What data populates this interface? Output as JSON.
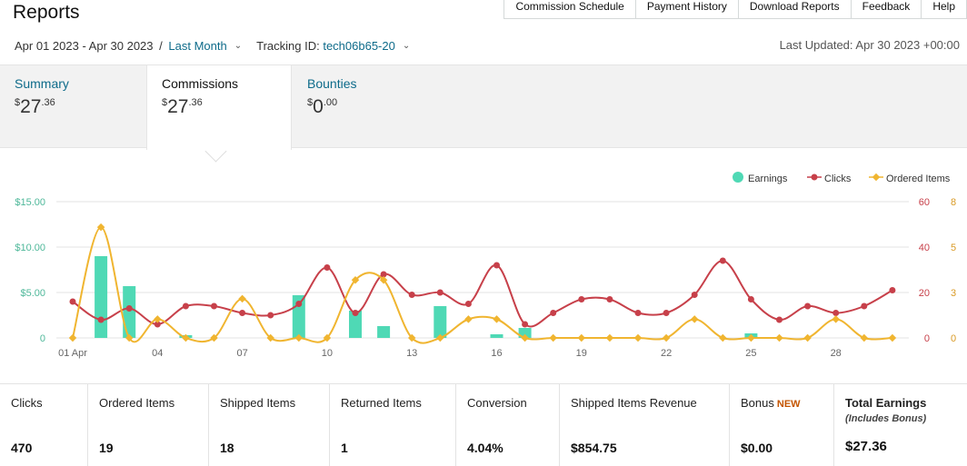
{
  "header": {
    "title": "Reports",
    "nav": [
      "Commission Schedule",
      "Payment History",
      "Download Reports",
      "Feedback",
      "Help"
    ],
    "date_range": "Apr 01 2023 - Apr 30 2023",
    "range_slash": "/",
    "range_preset": "Last Month",
    "tracking_label": "Tracking ID:",
    "tracking_id": "tech06b65-20",
    "last_updated": "Last Updated: Apr 30 2023 +00:00"
  },
  "tabs": [
    {
      "label": "Summary",
      "currency": "$",
      "whole": "27",
      "cents": ".36"
    },
    {
      "label": "Commissions",
      "currency": "$",
      "whole": "27",
      "cents": ".36"
    },
    {
      "label": "Bounties",
      "currency": "$",
      "whole": "0",
      "cents": ".00"
    }
  ],
  "colors": {
    "earnings": "#4fd9b5",
    "clicks": "#c7404a",
    "ordered": "#f0b530",
    "link": "#0e6b8a",
    "new_badge": "#c45500"
  },
  "chart_data": {
    "type": "bar",
    "x_tick_labels": [
      "01 Apr",
      "04",
      "07",
      "10",
      "13",
      "16",
      "19",
      "22",
      "25",
      "28"
    ],
    "x_tick_days": [
      1,
      4,
      7,
      10,
      13,
      16,
      19,
      22,
      25,
      28
    ],
    "days": [
      1,
      2,
      3,
      4,
      5,
      6,
      7,
      8,
      9,
      10,
      11,
      12,
      13,
      14,
      15,
      16,
      17,
      18,
      19,
      20,
      21,
      22,
      23,
      24,
      25,
      26,
      27,
      28,
      29,
      30
    ],
    "y_left_labels": [
      "$15.00",
      "$10.00",
      "$5.00",
      "0"
    ],
    "y_left_range": [
      0,
      15
    ],
    "y_right1_labels": [
      "60",
      "40",
      "20",
      "0"
    ],
    "y_right1_range": [
      0,
      60
    ],
    "y_right2_labels": [
      "8",
      "5",
      "3",
      "0"
    ],
    "y_right2_range": [
      0,
      8
    ],
    "grid": true,
    "legend_position": "top-right",
    "series": [
      {
        "name": "Earnings",
        "type": "bar",
        "axis": "left",
        "values": [
          0,
          9.0,
          5.7,
          0,
          0.3,
          0,
          0,
          0,
          4.7,
          0,
          3.0,
          1.3,
          0,
          3.5,
          0,
          0.4,
          1.1,
          0,
          0,
          0,
          0,
          0,
          0,
          0,
          0.5,
          0,
          0,
          0,
          0,
          0
        ]
      },
      {
        "name": "Clicks",
        "type": "line",
        "axis": "right1",
        "values": [
          16,
          8,
          13,
          6,
          14,
          14,
          11,
          10,
          15,
          31,
          11,
          28,
          19,
          20,
          15,
          32,
          6,
          11,
          17,
          17,
          11,
          11,
          19,
          34,
          17,
          8,
          14,
          11,
          14,
          21
        ]
      },
      {
        "name": "Ordered Items",
        "type": "line",
        "axis": "right2",
        "values": [
          0,
          6.5,
          0,
          1.1,
          0,
          0,
          2.3,
          0,
          0,
          0,
          3.4,
          3.4,
          0,
          0,
          1.1,
          1.1,
          0,
          0,
          0,
          0,
          0,
          0,
          1.1,
          0,
          0,
          0,
          0,
          1.1,
          0,
          0
        ]
      }
    ]
  },
  "stats": [
    {
      "label": "Clicks",
      "value": "470"
    },
    {
      "label": "Ordered Items",
      "value": "19"
    },
    {
      "label": "Shipped Items",
      "value": "18"
    },
    {
      "label": "Returned Items",
      "value": "1"
    },
    {
      "label": "Conversion",
      "value": "4.04%"
    },
    {
      "label": "Shipped Items Revenue",
      "value": "$854.75"
    },
    {
      "label": "Bonus",
      "badge": "NEW",
      "value": "$0.00"
    },
    {
      "label": "Total Earnings",
      "note": "(Includes Bonus)",
      "value": "$27.36"
    }
  ]
}
